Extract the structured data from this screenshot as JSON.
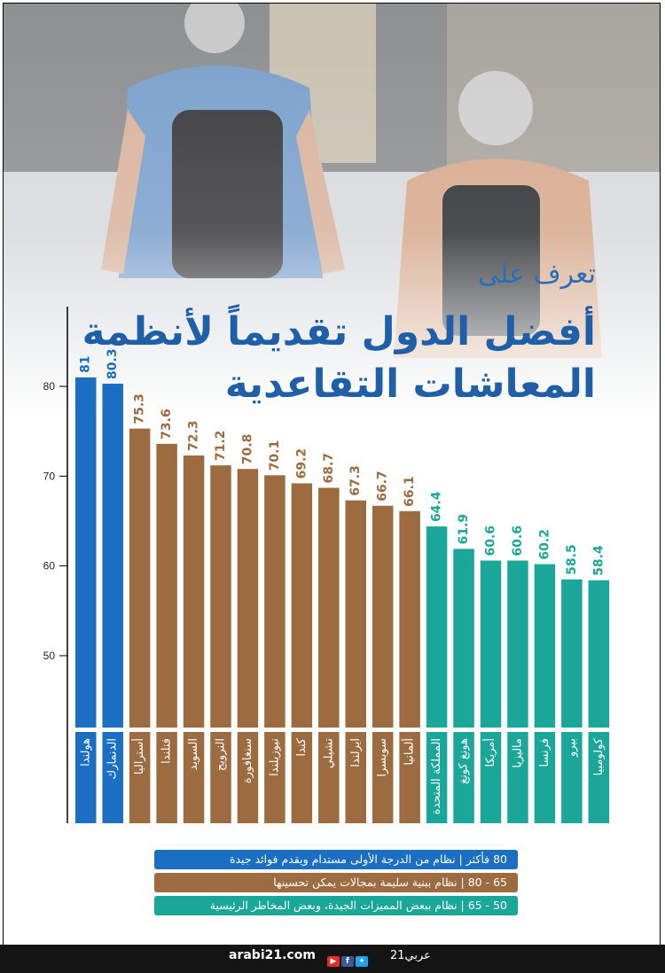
{
  "title_line1": "تعرف على",
  "title_line2": "أفضل الدول تقديماً لأنظمة",
  "title_line3": "المعاشات التقاعدية",
  "colors": {
    "blue": "#1a6fc2",
    "brown": "#9c6b40",
    "teal": "#1aa79a",
    "title": "#1f5fa8"
  },
  "chart_data": {
    "type": "bar",
    "categories": [
      "هولندا",
      "الدنمارك",
      "أستراليا",
      "فنلندا",
      "السويد",
      "النرويج",
      "سنغافورة",
      "نيوزيلندا",
      "كندا",
      "تشيلي",
      "ايرلندا",
      "سويسرا",
      "ألمانيا",
      "المملكة المتحدة",
      "هونغ كونغ",
      "أمريكا",
      "ماليزيا",
      "فرنسا",
      "بيرو",
      "كولومبيا"
    ],
    "values": [
      81,
      80.3,
      75.3,
      73.6,
      72.3,
      71.2,
      70.8,
      70.1,
      69.2,
      68.7,
      67.3,
      66.7,
      66.1,
      64.4,
      61.9,
      60.6,
      60.6,
      60.2,
      58.5,
      58.4
    ],
    "value_labels": [
      "81",
      "80.3",
      "75.3",
      "73.6",
      "72.3",
      "71.2",
      "70.8",
      "70.1",
      "69.2",
      "68.7",
      "67.3",
      "66.7",
      "66.1",
      "64.4",
      "61.9",
      "60.6",
      "60.6",
      "60.2",
      "58.5",
      "58.4"
    ],
    "groups": [
      "blue",
      "blue",
      "brown",
      "brown",
      "brown",
      "brown",
      "brown",
      "brown",
      "brown",
      "brown",
      "brown",
      "brown",
      "brown",
      "teal",
      "teal",
      "teal",
      "teal",
      "teal",
      "teal",
      "teal"
    ],
    "yticks": [
      "50",
      "60",
      "70",
      "80"
    ],
    "ylim": [
      42,
      85
    ],
    "grid": false
  },
  "legend": [
    {
      "text": "80 فأكثر | نظام من الدرجة الأولى مستدام ويقدم فوائد جيدة",
      "color": "blue"
    },
    {
      "text": "65 - 80 | نظام ببنية سليمة بمجالات يمكن تحسينها",
      "color": "brown"
    },
    {
      "text": "50 - 65 | نظام ببعض المميزات الجيدة، وبعض المخاطر الرئيسية",
      "color": "teal"
    }
  ],
  "footer": {
    "url": "arabi21.com",
    "logo": "عربي21"
  }
}
